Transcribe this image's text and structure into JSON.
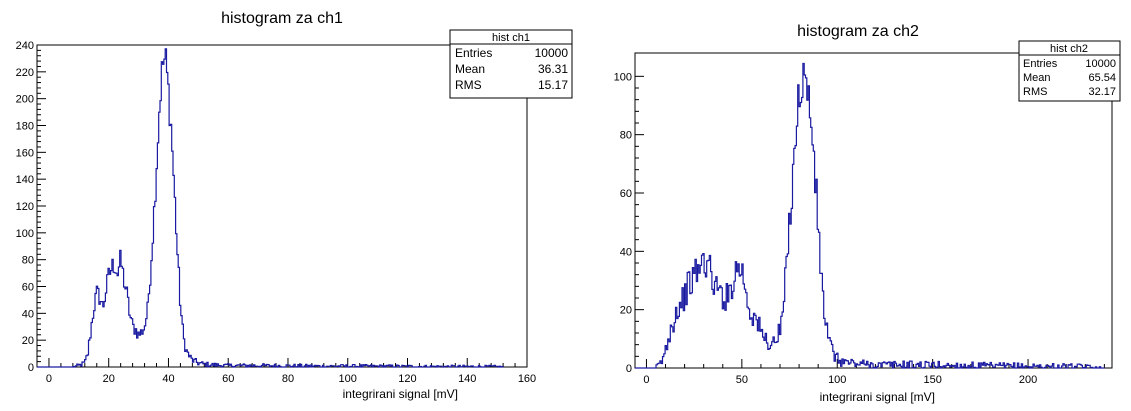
{
  "chart_data": [
    {
      "type": "histogram",
      "title": "histogram za ch1",
      "xlabel": "integrirani signal  [mV]",
      "ylabel": "",
      "xlim": [
        -4,
        160
      ],
      "ylim": [
        0,
        240
      ],
      "xticks": [
        0,
        20,
        40,
        60,
        80,
        100,
        120,
        140,
        160
      ],
      "yticks": [
        0,
        20,
        40,
        60,
        80,
        100,
        120,
        140,
        160,
        180,
        200,
        220,
        240
      ],
      "line_color": "#1a1aa0",
      "stats": {
        "title": "hist ch1",
        "rows": [
          {
            "label": "Entries",
            "value": "10000"
          },
          {
            "label": "Mean",
            "value": "36.31"
          },
          {
            "label": "RMS",
            "value": "15.17"
          }
        ]
      },
      "x": [
        8,
        10,
        12,
        13,
        14,
        15,
        16,
        17,
        18,
        19,
        20,
        21,
        22,
        23,
        24,
        25,
        26,
        27,
        28,
        29,
        30,
        31,
        32,
        33,
        34,
        35,
        36,
        37,
        38,
        39,
        40,
        41,
        42,
        43,
        44,
        45,
        46,
        47,
        48,
        50,
        52,
        55,
        60,
        70,
        80,
        90,
        100,
        110,
        120,
        130,
        140,
        150,
        152
      ],
      "y": [
        0,
        1,
        3,
        10,
        27,
        44,
        55,
        52,
        44,
        56,
        68,
        74,
        77,
        70,
        80,
        66,
        55,
        40,
        30,
        28,
        24,
        26,
        30,
        42,
        72,
        108,
        150,
        195,
        225,
        230,
        205,
        175,
        130,
        85,
        46,
        22,
        12,
        8,
        5,
        3,
        2,
        1.5,
        1,
        1,
        0.8,
        0.6,
        0.6,
        0.5,
        0.4,
        0.3,
        0.3,
        0.2,
        0
      ]
    },
    {
      "type": "histogram",
      "title": "histogram za ch2",
      "xlabel": "integrirani signal  [mV]",
      "ylabel": "",
      "xlim": [
        -6,
        244
      ],
      "ylim": [
        0,
        108
      ],
      "xticks": [
        0,
        50,
        100,
        150,
        200
      ],
      "yticks": [
        0,
        20,
        40,
        60,
        80,
        100
      ],
      "line_color": "#1a1aa0",
      "stats": {
        "title": "hist ch2",
        "rows": [
          {
            "label": "Entries",
            "value": "10000"
          },
          {
            "label": "Mean",
            "value": "65.54"
          },
          {
            "label": "RMS",
            "value": "32.17"
          }
        ]
      },
      "x": [
        5,
        8,
        10,
        12,
        14,
        16,
        18,
        20,
        22,
        24,
        26,
        28,
        30,
        32,
        34,
        36,
        38,
        40,
        42,
        44,
        46,
        48,
        50,
        52,
        54,
        56,
        58,
        60,
        62,
        64,
        66,
        68,
        70,
        72,
        74,
        76,
        78,
        80,
        82,
        84,
        86,
        88,
        90,
        92,
        94,
        96,
        98,
        100,
        104,
        110,
        120,
        140,
        160,
        180,
        200,
        220,
        240
      ],
      "y": [
        0,
        2,
        6,
        12,
        16,
        20,
        22,
        25,
        28,
        30,
        33,
        34,
        37,
        36,
        32,
        28,
        26,
        25,
        24,
        27,
        32,
        35,
        34,
        27,
        20,
        18,
        16,
        12,
        10,
        9,
        8,
        10,
        12,
        22,
        40,
        60,
        80,
        92,
        102,
        95,
        88,
        70,
        48,
        28,
        15,
        8,
        5,
        3,
        2,
        1.5,
        1,
        1,
        0.8,
        0.6,
        0.5,
        0.4,
        0
      ]
    }
  ]
}
